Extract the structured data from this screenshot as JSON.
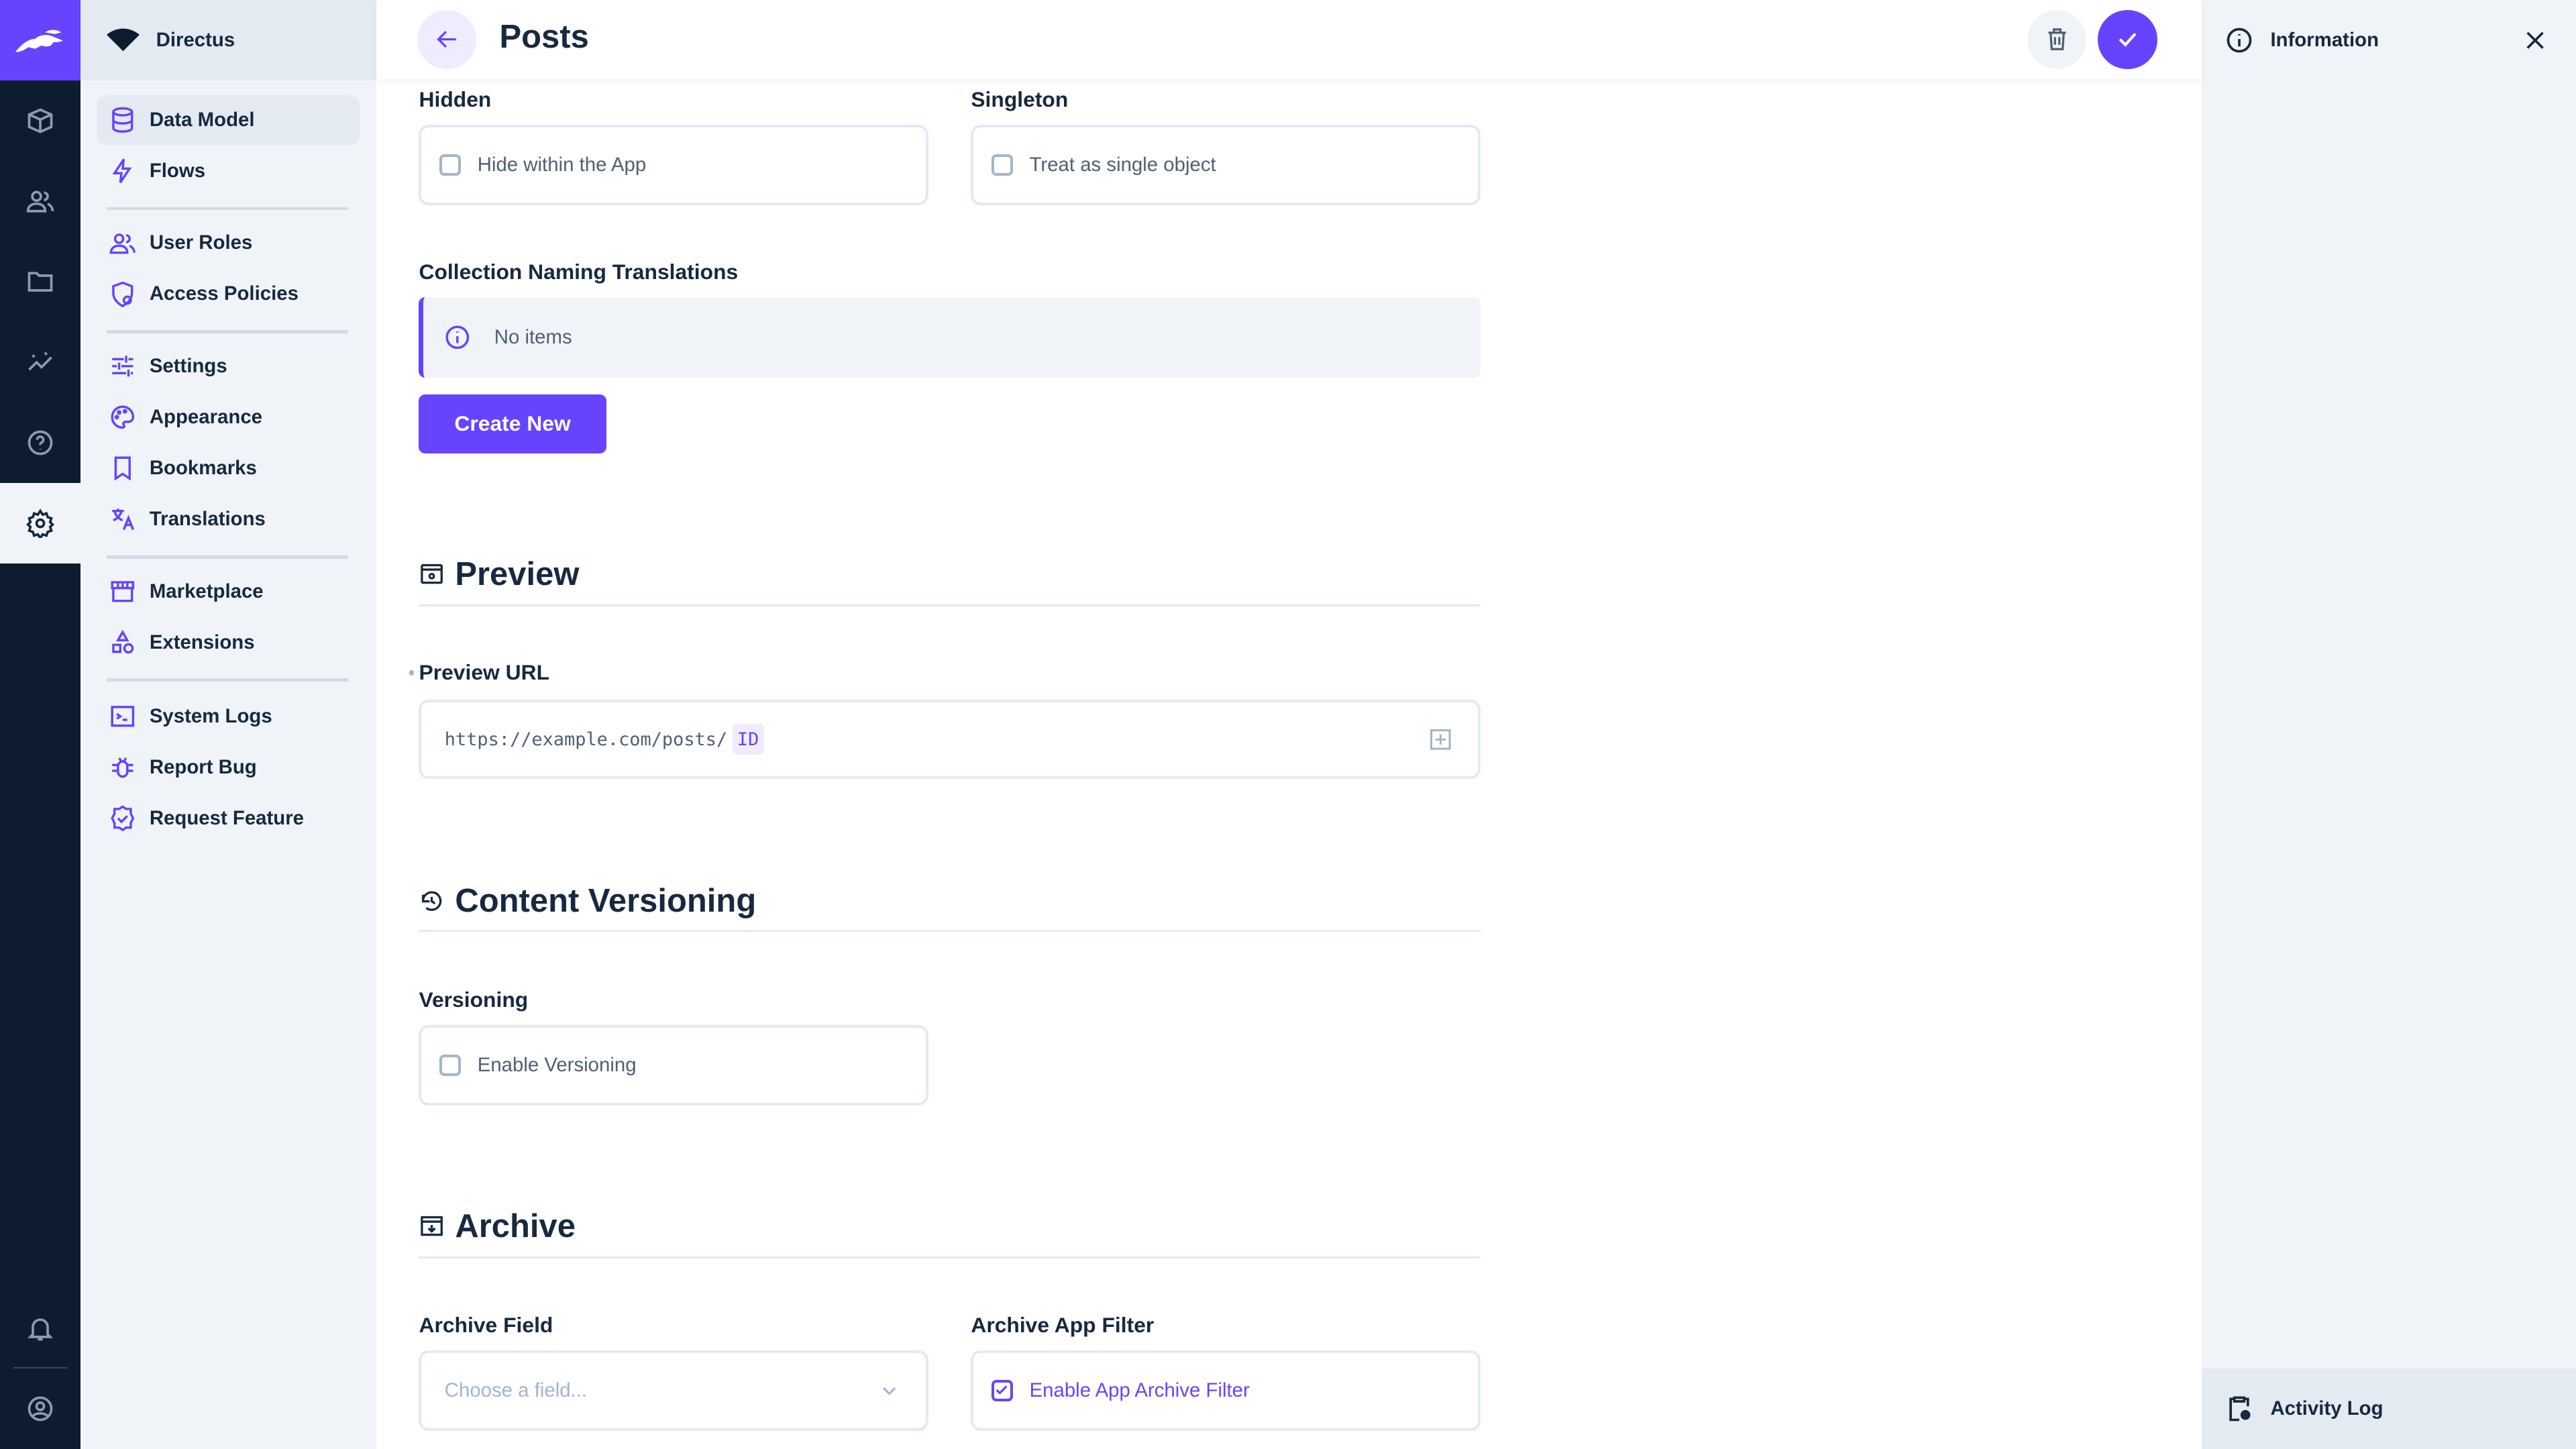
{
  "colors": {
    "accent": "#6644ff",
    "rail": "#0e1c2f",
    "sidebar": "#f0f4f9"
  },
  "project": {
    "name": "Directus"
  },
  "rail": {
    "icons": [
      "content-icon",
      "users-icon",
      "files-icon",
      "insights-icon",
      "help-icon",
      "settings-icon",
      "notifications-icon",
      "user-profile-icon"
    ],
    "active": "settings-icon"
  },
  "sidebar": {
    "items": [
      {
        "label": "Data Model",
        "icon": "database-icon",
        "active": true
      },
      {
        "label": "Flows",
        "icon": "bolt-icon"
      },
      {
        "label": "User Roles",
        "icon": "group-icon"
      },
      {
        "label": "Access Policies",
        "icon": "shield-person-icon"
      },
      {
        "label": "Settings",
        "icon": "tune-icon"
      },
      {
        "label": "Appearance",
        "icon": "palette-icon"
      },
      {
        "label": "Bookmarks",
        "icon": "bookmark-icon"
      },
      {
        "label": "Translations",
        "icon": "translate-icon"
      },
      {
        "label": "Marketplace",
        "icon": "storefront-icon"
      },
      {
        "label": "Extensions",
        "icon": "category-icon"
      },
      {
        "label": "System Logs",
        "icon": "terminal-icon"
      },
      {
        "label": "Report Bug",
        "icon": "bug-icon"
      },
      {
        "label": "Request Feature",
        "icon": "verified-icon"
      }
    ]
  },
  "header": {
    "title": "Posts"
  },
  "form": {
    "hidden": {
      "label": "Hidden",
      "option": "Hide within the App",
      "checked": false
    },
    "singleton": {
      "label": "Singleton",
      "option": "Treat as single object",
      "checked": false
    },
    "translations": {
      "label": "Collection Naming Translations",
      "empty": "No items",
      "create": "Create New"
    },
    "preview": {
      "section": "Preview",
      "label": "Preview URL",
      "url": "https://example.com/posts/",
      "token": "ID"
    },
    "versioning": {
      "section": "Content Versioning",
      "label": "Versioning",
      "option": "Enable Versioning",
      "checked": false
    },
    "archive": {
      "section": "Archive",
      "field_label": "Archive Field",
      "field_placeholder": "Choose a field...",
      "filter_label": "Archive App Filter",
      "filter_option": "Enable App Archive Filter",
      "filter_checked": true
    }
  },
  "panel": {
    "title": "Information",
    "activity": "Activity Log"
  }
}
